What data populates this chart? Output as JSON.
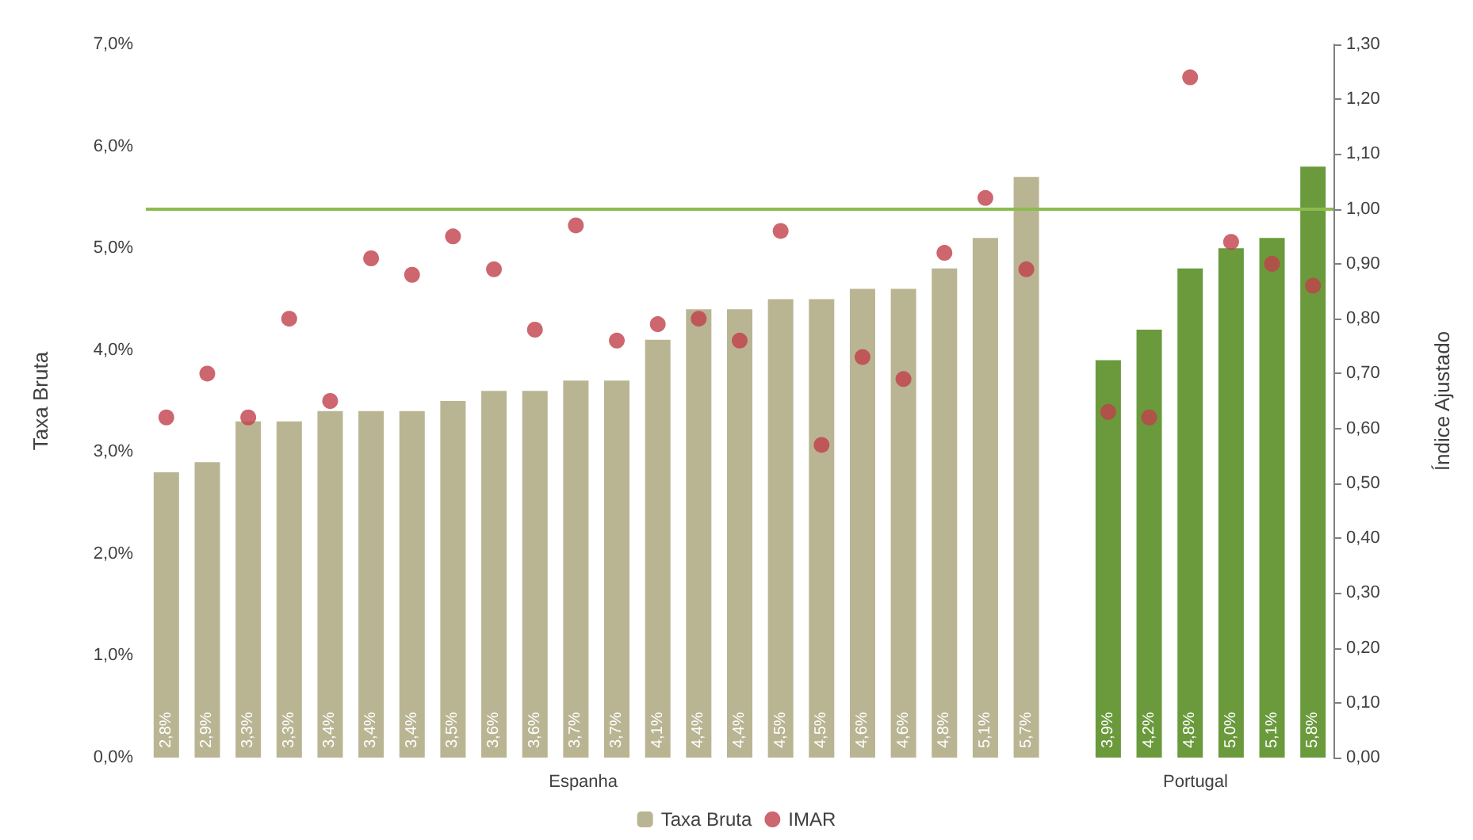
{
  "chart_data": {
    "type": "bar",
    "ylabel": "Taxa Bruta",
    "y2label": "Índice Ajustado",
    "categories": [
      null,
      null,
      null,
      null,
      null,
      null,
      null,
      null,
      null,
      null,
      null,
      null,
      null,
      null,
      null,
      null,
      null,
      null,
      null,
      null,
      null,
      null,
      null,
      null,
      null,
      null,
      null,
      null,
      null
    ],
    "series": [
      {
        "name": "Taxa Bruta",
        "colors": [
          "#b9b593",
          "#b9b593",
          "#b9b593",
          "#b9b593",
          "#b9b593",
          "#b9b593",
          "#b9b593",
          "#b9b593",
          "#b9b593",
          "#b9b593",
          "#b9b593",
          "#b9b593",
          "#b9b593",
          "#b9b593",
          "#b9b593",
          "#b9b593",
          "#b9b593",
          "#b9b593",
          "#b9b593",
          "#b9b593",
          "#b9b593",
          "#b9b593",
          null,
          "#6a9a3c",
          "#6a9a3c",
          "#6a9a3c",
          "#6a9a3c",
          "#6a9a3c",
          "#6a9a3c"
        ],
        "values": [
          2.8,
          2.9,
          3.3,
          3.3,
          3.4,
          3.4,
          3.4,
          3.5,
          3.6,
          3.6,
          3.7,
          3.7,
          4.1,
          4.4,
          4.4,
          4.5,
          4.5,
          4.6,
          4.6,
          4.8,
          5.1,
          5.7,
          null,
          3.9,
          4.2,
          4.8,
          5.0,
          5.1,
          5.8
        ],
        "value_labels": [
          "2,8%",
          "2,9%",
          "3,3%",
          "3,3%",
          "3,4%",
          "3,4%",
          "3,4%",
          "3,5%",
          "3,6%",
          "3,6%",
          "3,7%",
          "3,7%",
          "4,1%",
          "4,4%",
          "4,4%",
          "4,5%",
          "4,5%",
          "4,6%",
          "4,6%",
          "4,8%",
          "5,1%",
          "5,7%",
          null,
          "3,9%",
          "4,2%",
          "4,8%",
          "5,0%",
          "5,1%",
          "5,8%"
        ]
      },
      {
        "name": "IMAR",
        "type": "scatter",
        "axis": "y2",
        "color": "#c0404a",
        "marker": "circle",
        "values": [
          0.62,
          0.7,
          0.62,
          0.8,
          0.65,
          0.91,
          0.88,
          0.95,
          0.89,
          0.78,
          0.97,
          0.76,
          0.79,
          0.8,
          0.76,
          0.96,
          0.57,
          0.73,
          0.69,
          0.92,
          1.02,
          0.89,
          null,
          0.63,
          0.62,
          1.24,
          0.94,
          0.9,
          0.86
        ]
      }
    ],
    "ylim": [
      0,
      7
    ],
    "yticks": [
      {
        "value": 0,
        "label": "0,0%"
      },
      {
        "value": 1,
        "label": "1,0%"
      },
      {
        "value": 2,
        "label": "2,0%"
      },
      {
        "value": 3,
        "label": "3,0%"
      },
      {
        "value": 4,
        "label": "4,0%"
      },
      {
        "value": 5,
        "label": "5,0%"
      },
      {
        "value": 6,
        "label": "6,0%"
      },
      {
        "value": 7,
        "label": "7,0%"
      }
    ],
    "y2lim": [
      0,
      1.3
    ],
    "y2ticks": [
      {
        "value": 0,
        "label": "0,00"
      },
      {
        "value": 0.1,
        "label": "0,10"
      },
      {
        "value": 0.2,
        "label": "0,20"
      },
      {
        "value": 0.3,
        "label": "0,30"
      },
      {
        "value": 0.4,
        "label": "0,40"
      },
      {
        "value": 0.5,
        "label": "0,50"
      },
      {
        "value": 0.6,
        "label": "0,60"
      },
      {
        "value": 0.7,
        "label": "0,70"
      },
      {
        "value": 0.8,
        "label": "0,80"
      },
      {
        "value": 0.9,
        "label": "0,90"
      },
      {
        "value": 1.0,
        "label": "1,00"
      },
      {
        "value": 1.1,
        "label": "1,10"
      },
      {
        "value": 1.2,
        "label": "1,20"
      },
      {
        "value": 1.3,
        "label": "1,30"
      }
    ],
    "ref_lines": [
      {
        "axis": "y2",
        "value": 1.0,
        "color": "#8cbc4f",
        "line_style": "solid"
      }
    ],
    "annotations": [
      "Espanha",
      "Portugal"
    ],
    "grid": false,
    "legend": "bottom"
  }
}
